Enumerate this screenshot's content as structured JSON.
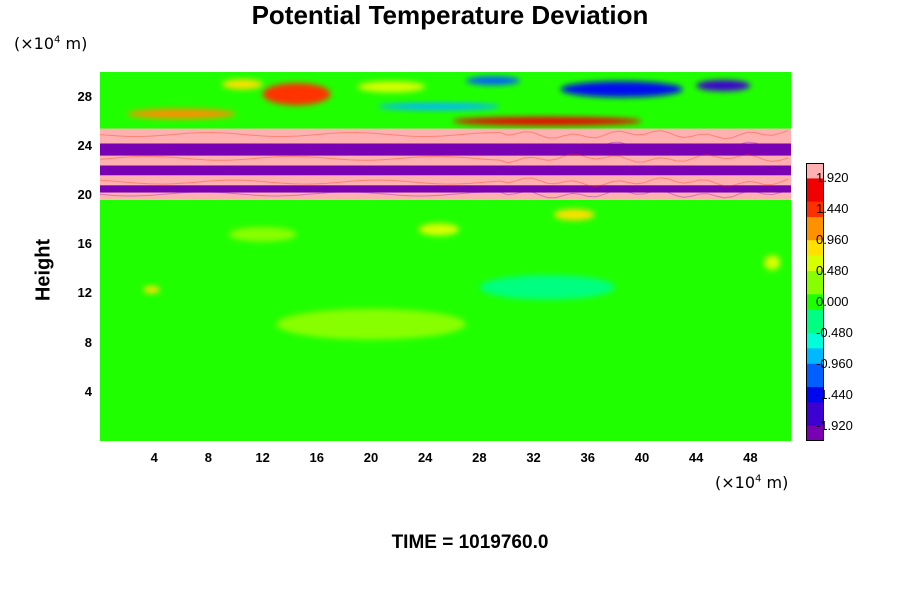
{
  "chart_data": {
    "type": "heatmap",
    "title": "Potential Temperature Deviation",
    "ylabel": "Height",
    "y_unit": {
      "prefix": "(×10",
      "exp": "4",
      "suffix": " m)"
    },
    "x_unit": {
      "prefix": "(×10",
      "exp": "4",
      "suffix": " m)"
    },
    "xlim": [
      0,
      51
    ],
    "ylim": [
      0,
      30
    ],
    "x_ticks": [
      "4",
      "8",
      "12",
      "16",
      "20",
      "24",
      "28",
      "32",
      "36",
      "40",
      "44",
      "48"
    ],
    "y_ticks": [
      "4",
      "8",
      "12",
      "16",
      "20",
      "24",
      "28"
    ],
    "colorbar": {
      "min": -2.16,
      "max": 2.16,
      "labels": [
        "1.920",
        "1.440",
        "0.960",
        "0.480",
        "0.000",
        "-0.480",
        "-0.960",
        "-1.440",
        "-1.920"
      ]
    },
    "colormap": [
      "#7a00b4",
      "#3c00d0",
      "#0008f0",
      "#0060ff",
      "#00b8ff",
      "#00ffd8",
      "#00ff80",
      "#20ff00",
      "#88ff00",
      "#d8ff00",
      "#ffe000",
      "#ff9000",
      "#ff3000",
      "#f00000",
      "#ffb0b0"
    ],
    "regions": [
      {
        "kind": "lower",
        "y_range": [
          0,
          19.6
        ],
        "level": 0.0
      },
      {
        "kind": "band",
        "y_range": [
          19.6,
          20.2
        ],
        "level": 2.0
      },
      {
        "kind": "band",
        "y_range": [
          20.2,
          20.8
        ],
        "level": -2.0
      },
      {
        "kind": "band",
        "y_range": [
          20.8,
          21.6
        ],
        "level": 2.0
      },
      {
        "kind": "band",
        "y_range": [
          21.6,
          22.4
        ],
        "level": -2.0
      },
      {
        "kind": "band",
        "y_range": [
          22.4,
          23.2
        ],
        "level": 2.0
      },
      {
        "kind": "band",
        "y_range": [
          23.2,
          24.2
        ],
        "level": -2.0
      },
      {
        "kind": "band",
        "y_range": [
          24.2,
          25.4
        ],
        "level": 2.0
      },
      {
        "kind": "upper",
        "y_range": [
          25.4,
          30
        ],
        "level": 0.0
      }
    ],
    "features": [
      {
        "x": 14.5,
        "y": 28.2,
        "w": 5,
        "h": 1.8,
        "level": 1.5
      },
      {
        "x": 10.5,
        "y": 29.0,
        "w": 3,
        "h": 0.8,
        "level": 0.9
      },
      {
        "x": 38.5,
        "y": 28.6,
        "w": 9,
        "h": 1.3,
        "level": -1.5
      },
      {
        "x": 46,
        "y": 28.9,
        "w": 4,
        "h": 0.9,
        "level": -1.6
      },
      {
        "x": 29,
        "y": 29.3,
        "w": 4,
        "h": 0.7,
        "level": -1.1
      },
      {
        "x": 21.5,
        "y": 28.8,
        "w": 5,
        "h": 0.9,
        "level": 0.6
      },
      {
        "x": 6,
        "y": 26.6,
        "w": 8,
        "h": 0.8,
        "level": 1.2
      },
      {
        "x": 33,
        "y": 26.0,
        "w": 14,
        "h": 0.7,
        "level": 1.6
      },
      {
        "x": 25,
        "y": 27.2,
        "w": 9,
        "h": 0.6,
        "level": -0.8
      },
      {
        "x": 12,
        "y": 16.8,
        "w": 5,
        "h": 1.2,
        "level": 0.4
      },
      {
        "x": 25,
        "y": 17.2,
        "w": 3,
        "h": 1.0,
        "level": 0.6
      },
      {
        "x": 3.8,
        "y": 12.3,
        "w": 1.2,
        "h": 0.6,
        "level": 0.8
      },
      {
        "x": 49.6,
        "y": 14.5,
        "w": 1.2,
        "h": 1.2,
        "level": 0.7
      },
      {
        "x": 35,
        "y": 18.4,
        "w": 3,
        "h": 0.9,
        "level": 0.9
      },
      {
        "x": 20,
        "y": 9.5,
        "w": 14,
        "h": 2.5,
        "level": 0.15
      },
      {
        "x": 33,
        "y": 12.5,
        "w": 10,
        "h": 2.0,
        "level": -0.2
      }
    ]
  },
  "footer": {
    "time_text": "TIME = 1019760.0"
  }
}
